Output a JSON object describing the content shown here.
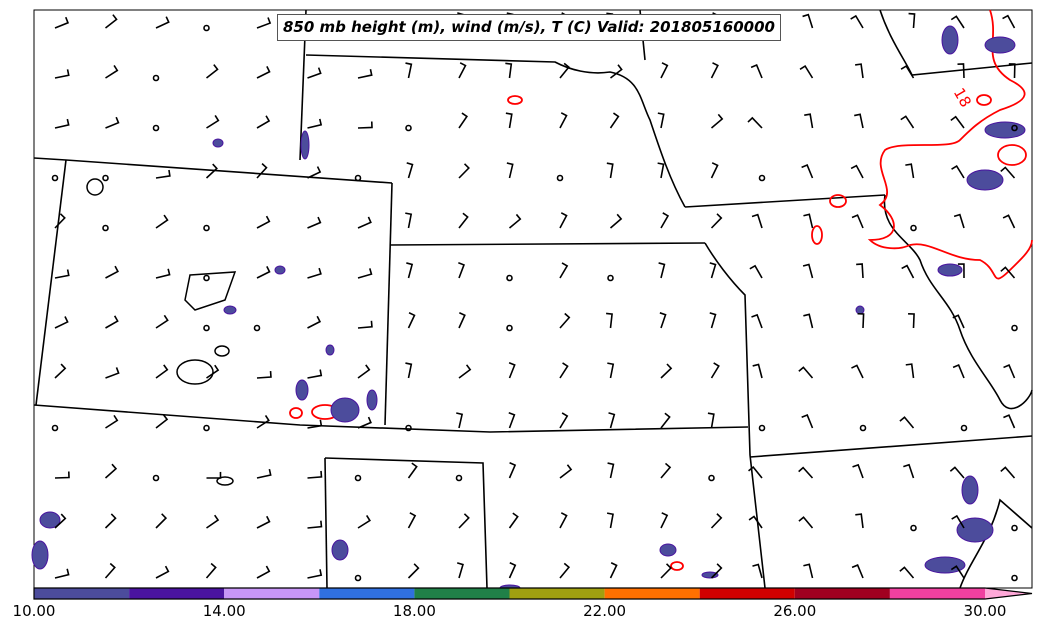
{
  "title": "850 mb height (m), wind (m/s), T (C) Valid: 201805160000",
  "contour_label": "18",
  "colorbar": {
    "bounds": [
      10,
      12,
      14,
      16,
      18,
      20,
      22,
      24,
      26,
      28,
      30
    ],
    "colors": [
      "#4c4c9c",
      "#4a14a0",
      "#c896f8",
      "#3070e0",
      "#208048",
      "#a0a010",
      "#ff7000",
      "#d00000",
      "#a00020",
      "#f040a0"
    ],
    "extend_color": "#ffa8d8",
    "tick_labels": [
      "10.00",
      "14.00",
      "18.00",
      "22.00",
      "26.00",
      "30.00"
    ]
  }
}
